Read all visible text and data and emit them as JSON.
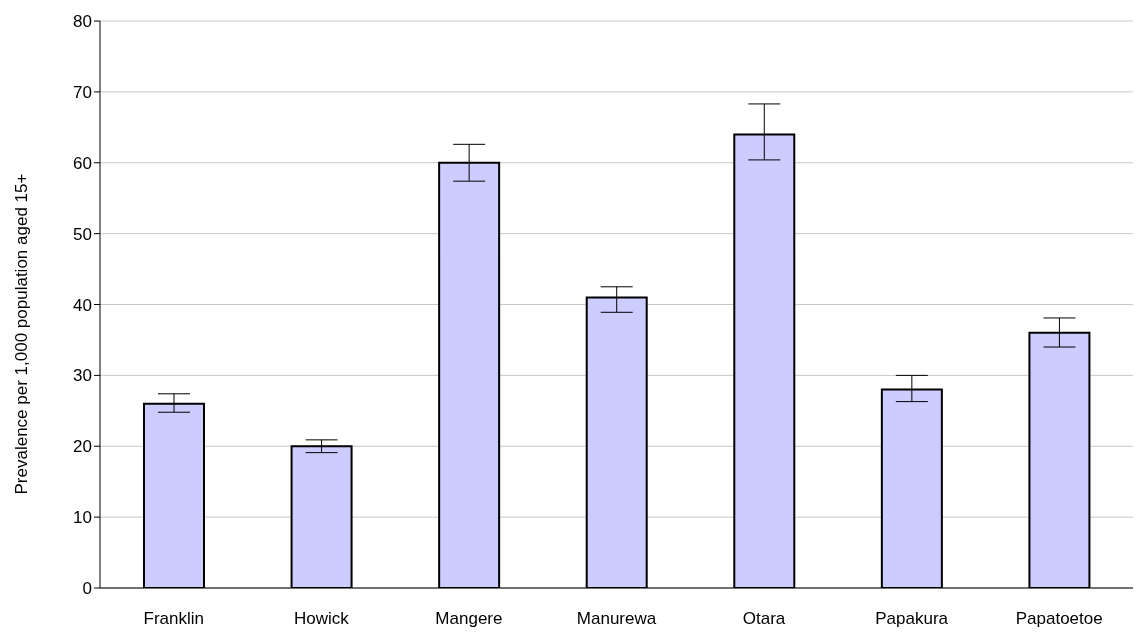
{
  "chart_data": {
    "type": "bar",
    "ylabel": "Prevalence per 1,000 population aged 15+",
    "categories": [
      "Franklin",
      "Howick",
      "Mangere",
      "Manurewa",
      "Otara",
      "Papakura",
      "Papatoetoe"
    ],
    "values": [
      26,
      20,
      60,
      41,
      64,
      28,
      36
    ],
    "errors": [
      [
        24.8,
        27.4
      ],
      [
        19.1,
        20.9
      ],
      [
        57.4,
        62.6
      ],
      [
        38.9,
        42.5
      ],
      [
        60.4,
        68.3
      ],
      [
        26.3,
        30.0
      ],
      [
        34.0,
        38.1
      ]
    ],
    "color": "#ccccff",
    "ylim": [
      0,
      80
    ],
    "yticks": [
      0,
      10,
      20,
      30,
      40,
      50,
      60,
      70,
      80
    ],
    "grid": "y"
  }
}
